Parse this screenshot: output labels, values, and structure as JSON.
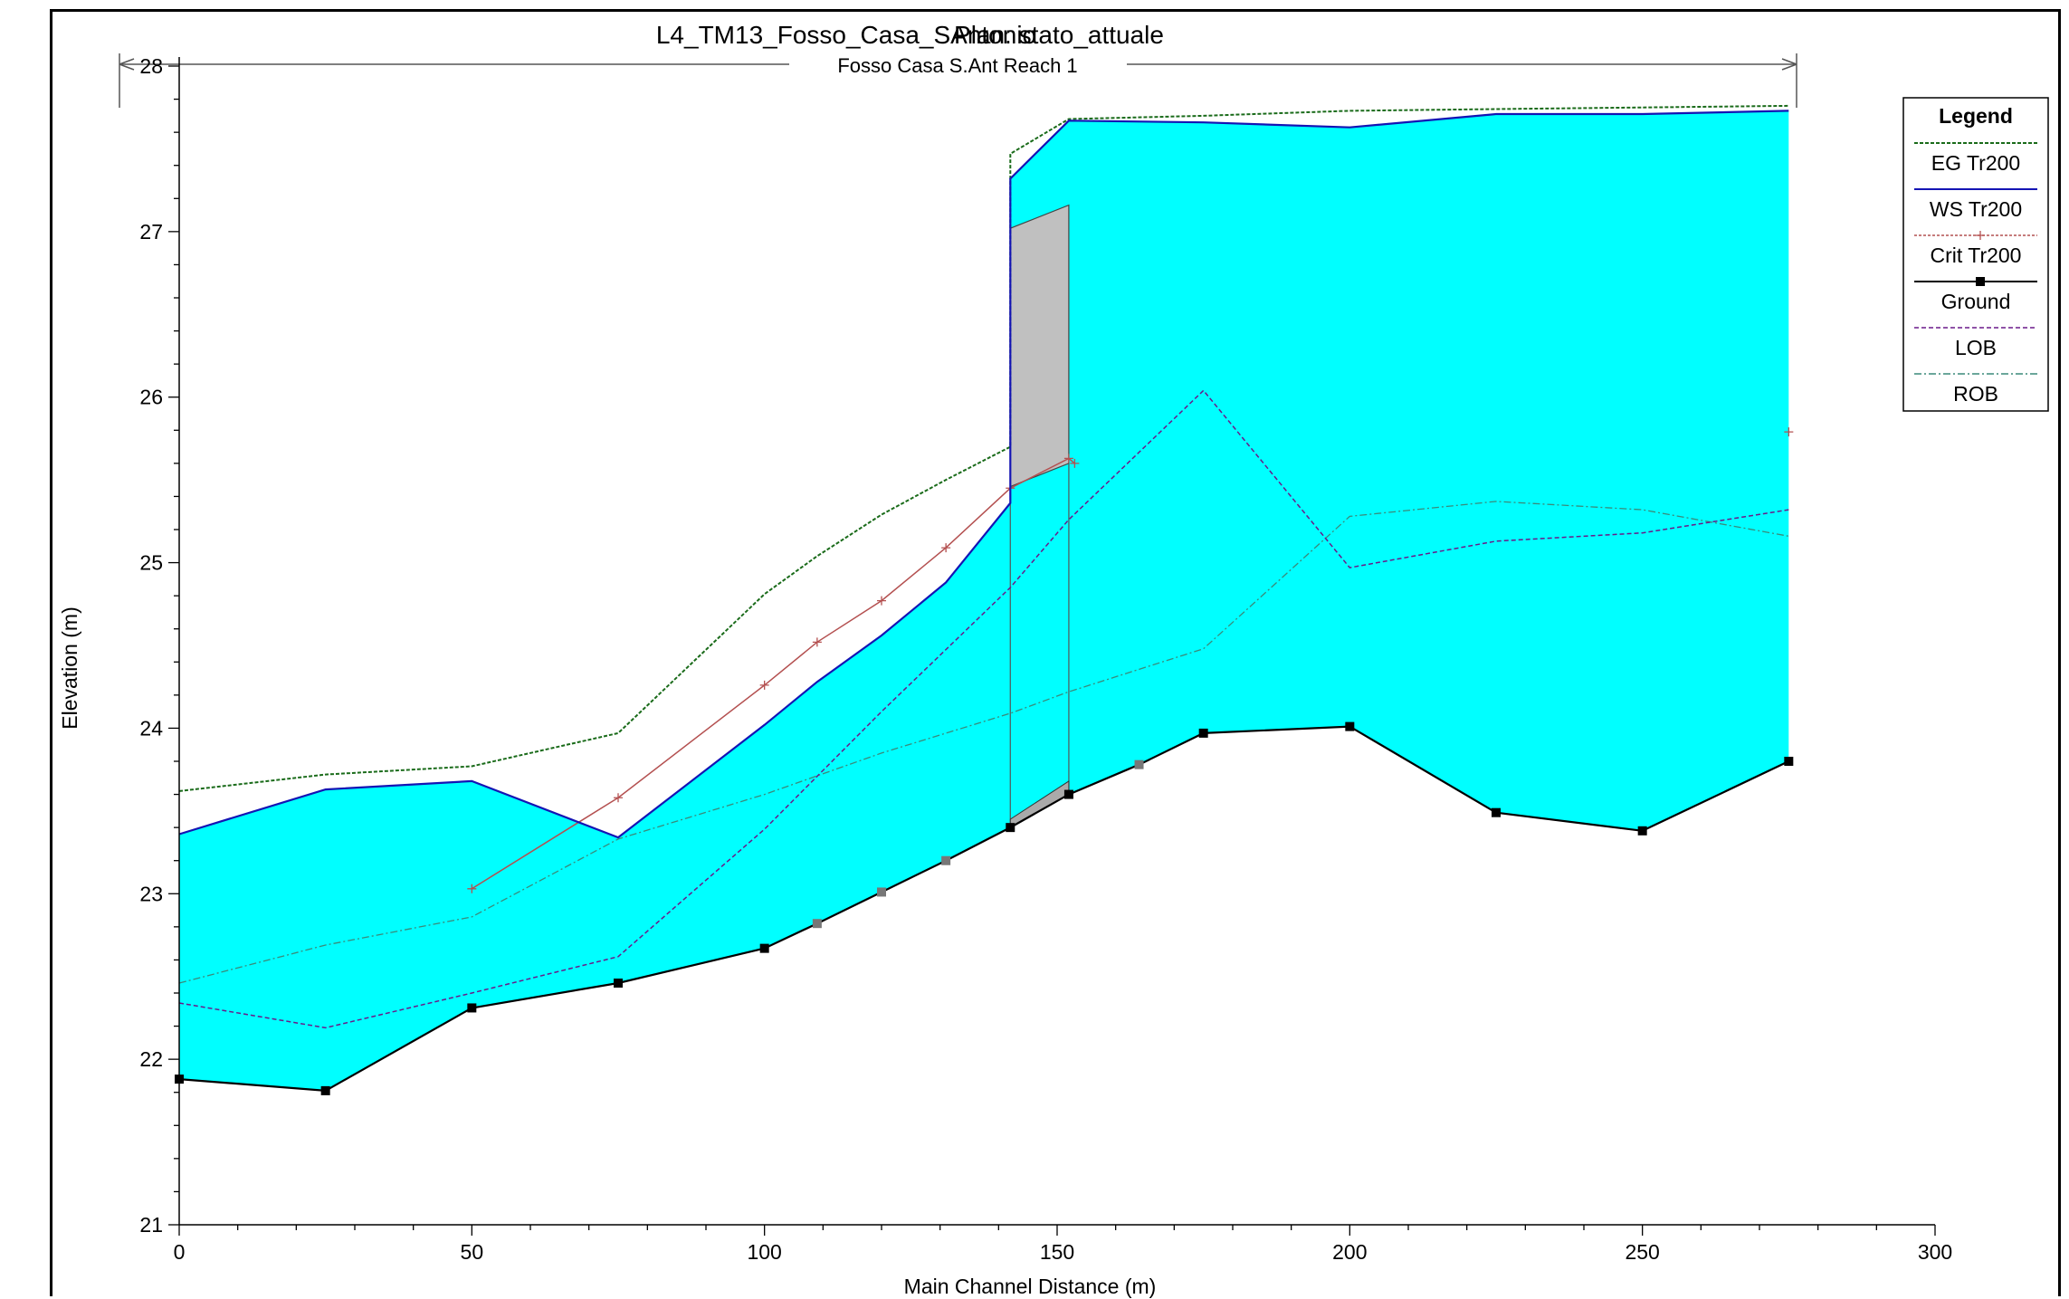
{
  "chart_data": {
    "type": "line",
    "title": "L4_TM13_Fosso_Casa_SAntonio",
    "plan": "Plan: stato_attuale",
    "reach_label": "Fosso Casa S.Ant Reach 1",
    "xlabel": "Main Channel Distance (m)",
    "ylabel": "Elevation (m)",
    "xlim": [
      0,
      300
    ],
    "ylim": [
      21,
      28
    ],
    "xticks": [
      "0",
      "50",
      "100",
      "150",
      "200",
      "250",
      "300"
    ],
    "yticks": [
      "21",
      "22",
      "23",
      "24",
      "25",
      "26",
      "27",
      "28"
    ],
    "legend": {
      "title": "Legend",
      "placement": "top-right",
      "entries": [
        "EG  Tr200",
        "WS  Tr200",
        "Crit  Tr200",
        "Ground",
        "LOB",
        "ROB"
      ]
    },
    "colors": {
      "water": "#00ffff",
      "EG": "#1a6b1a",
      "WS": "#1414b4",
      "Crit": "#b45050",
      "Ground": "#000000",
      "LOB": "#6a1a8a",
      "ROB": "#3a8a7a",
      "structure": "#c0c0c0"
    },
    "series": [
      {
        "name": "EG  Tr200",
        "points": [
          [
            0,
            23.62
          ],
          [
            25,
            23.72
          ],
          [
            50,
            23.77
          ],
          [
            75,
            23.97
          ],
          [
            100,
            24.81
          ],
          [
            109,
            25.04
          ],
          [
            120,
            25.29
          ],
          [
            131,
            25.5
          ],
          [
            142,
            25.7
          ],
          [
            142,
            27.47
          ],
          [
            152,
            27.68
          ],
          [
            175,
            27.7
          ],
          [
            200,
            27.73
          ],
          [
            225,
            27.74
          ],
          [
            250,
            27.75
          ],
          [
            275,
            27.76
          ]
        ]
      },
      {
        "name": "WS  Tr200",
        "points": [
          [
            0,
            23.36
          ],
          [
            25,
            23.63
          ],
          [
            50,
            23.68
          ],
          [
            75,
            23.34
          ],
          [
            100,
            24.02
          ],
          [
            109,
            24.28
          ],
          [
            120,
            24.56
          ],
          [
            131,
            24.88
          ],
          [
            142,
            25.36
          ],
          [
            142,
            27.32
          ],
          [
            152,
            27.67
          ],
          [
            175,
            27.66
          ],
          [
            200,
            27.63
          ],
          [
            225,
            27.71
          ],
          [
            250,
            27.71
          ],
          [
            275,
            27.73
          ]
        ]
      },
      {
        "name": "Crit  Tr200",
        "points": [
          [
            50,
            23.03
          ],
          [
            75,
            23.58
          ],
          [
            100,
            24.26
          ],
          [
            109,
            24.52
          ],
          [
            120,
            24.77
          ],
          [
            131,
            25.09
          ],
          [
            142,
            25.45
          ],
          [
            152,
            25.63
          ],
          [
            153,
            25.6
          ]
        ]
      },
      {
        "name": "Ground",
        "points": [
          [
            0,
            21.88
          ],
          [
            25,
            21.81
          ],
          [
            50,
            22.31
          ],
          [
            75,
            22.46
          ],
          [
            100,
            22.67
          ],
          [
            109,
            22.82
          ],
          [
            120,
            23.01
          ],
          [
            131,
            23.2
          ],
          [
            142,
            23.4
          ],
          [
            152,
            23.6
          ],
          [
            164,
            23.78
          ],
          [
            175,
            23.97
          ],
          [
            200,
            24.01
          ],
          [
            225,
            23.49
          ],
          [
            250,
            23.38
          ],
          [
            275,
            23.8
          ]
        ]
      },
      {
        "name": "LOB",
        "points": [
          [
            0,
            22.34
          ],
          [
            25,
            22.19
          ],
          [
            50,
            22.4
          ],
          [
            75,
            22.62
          ],
          [
            100,
            23.39
          ],
          [
            120,
            24.1
          ],
          [
            142,
            24.85
          ],
          [
            152,
            25.26
          ],
          [
            175,
            26.04
          ],
          [
            200,
            24.97
          ],
          [
            225,
            25.13
          ],
          [
            250,
            25.18
          ],
          [
            275,
            25.32
          ]
        ]
      },
      {
        "name": "ROB",
        "points": [
          [
            0,
            22.46
          ],
          [
            25,
            22.69
          ],
          [
            50,
            22.86
          ],
          [
            75,
            23.33
          ],
          [
            100,
            23.6
          ],
          [
            120,
            23.85
          ],
          [
            142,
            24.09
          ],
          [
            152,
            24.22
          ],
          [
            175,
            24.48
          ],
          [
            200,
            25.28
          ],
          [
            225,
            25.37
          ],
          [
            250,
            25.32
          ],
          [
            275,
            25.16
          ]
        ]
      }
    ],
    "structure": {
      "x": [
        142,
        152
      ],
      "top": [
        27.02,
        27.16
      ],
      "bottom": [
        25.46,
        25.6
      ]
    },
    "extra_marks": [
      [
        275,
        25.79
      ]
    ]
  }
}
